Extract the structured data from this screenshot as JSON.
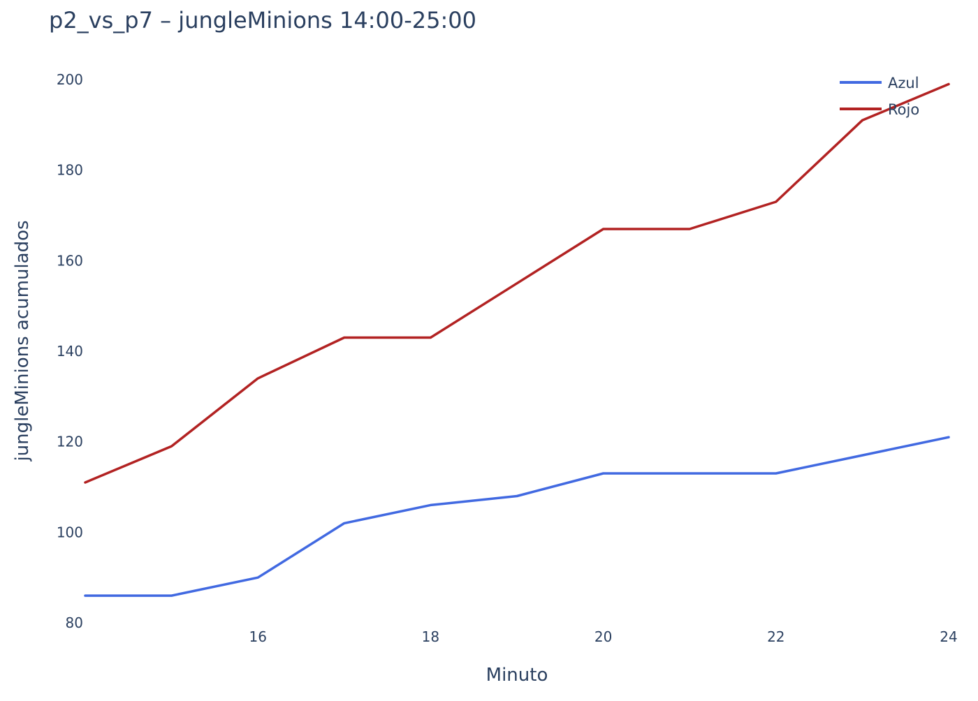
{
  "chart_data": {
    "type": "line",
    "title": "p2_vs_p7 – jungleMinions 14:00-25:00",
    "xlabel": "Minuto",
    "ylabel": "jungleMinions acumulados",
    "x": [
      14,
      15,
      16,
      17,
      18,
      19,
      20,
      21,
      22,
      23,
      24
    ],
    "xlim": [
      14,
      24
    ],
    "ylim": [
      80,
      200
    ],
    "x_ticks": [
      16,
      18,
      20,
      22,
      24
    ],
    "y_ticks": [
      80,
      100,
      120,
      140,
      160,
      180,
      200
    ],
    "grid": false,
    "legend_position": "top-right",
    "series": [
      {
        "name": "Azul",
        "color": "#4169e1",
        "values": [
          86,
          86,
          90,
          102,
          106,
          108,
          113,
          113,
          113,
          117,
          121
        ]
      },
      {
        "name": "Rojo",
        "color": "#b22222",
        "values": [
          111,
          119,
          134,
          143,
          143,
          155,
          167,
          167,
          173,
          191,
          199
        ]
      }
    ]
  }
}
